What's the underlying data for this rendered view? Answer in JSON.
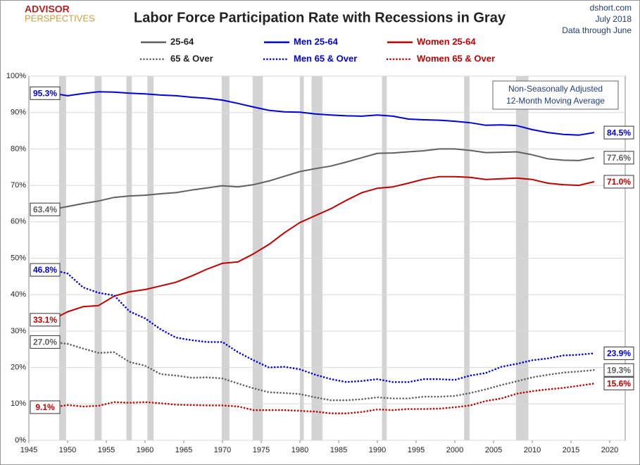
{
  "chart_data": {
    "type": "line",
    "title": "Labor Force Participation Rate with Recessions in Gray",
    "logo": [
      "ADVISOR",
      "PERSPECTIVES"
    ],
    "source": [
      "dshort.com",
      "July 2018",
      "Data through June"
    ],
    "note": [
      "Non-Seasonally Adjusted",
      "12-Month Moving Average"
    ],
    "x": [
      1948,
      1950,
      1952,
      1954,
      1956,
      1958,
      1960,
      1962,
      1964,
      1966,
      1968,
      1970,
      1972,
      1974,
      1976,
      1978,
      1980,
      1982,
      1984,
      1986,
      1988,
      1990,
      1992,
      1994,
      1996,
      1998,
      2000,
      2002,
      2004,
      2006,
      2008,
      2010,
      2012,
      2014,
      2016,
      2018
    ],
    "series": [
      {
        "name": "25-64",
        "color": "#606060",
        "dash": "solid",
        "values": [
          63.4,
          64.2,
          65.0,
          65.7,
          66.7,
          67.1,
          67.3,
          67.7,
          68.0,
          68.7,
          69.3,
          69.9,
          69.6,
          70.2,
          71.2,
          72.5,
          73.8,
          74.6,
          75.3,
          76.4,
          77.6,
          78.8,
          78.9,
          79.2,
          79.5,
          80.0,
          80.0,
          79.6,
          79.0,
          79.1,
          79.2,
          78.4,
          77.3,
          76.9,
          76.8,
          77.6
        ],
        "value_labels": [
          "63.4%",
          null,
          null,
          null,
          null,
          null,
          null,
          null,
          null,
          null,
          null,
          null,
          null,
          null,
          null,
          null,
          null,
          null,
          null,
          null,
          null,
          null,
          null,
          null,
          null,
          null,
          null,
          null,
          null,
          null,
          null,
          null,
          null,
          null,
          null,
          "77.6%"
        ]
      },
      {
        "name": "Men 25-64",
        "color": "#0000dd",
        "dash": "solid",
        "values": [
          95.3,
          94.6,
          95.2,
          95.7,
          95.6,
          95.3,
          95.1,
          94.8,
          94.6,
          94.2,
          93.9,
          93.4,
          92.5,
          91.5,
          90.6,
          90.2,
          90.1,
          89.6,
          89.3,
          89.1,
          89.0,
          89.3,
          89.0,
          88.2,
          88.0,
          87.9,
          87.6,
          87.2,
          86.5,
          86.6,
          86.4,
          85.3,
          84.5,
          84.0,
          83.8,
          84.5
        ],
        "value_labels": [
          "95.3%",
          null,
          null,
          null,
          null,
          null,
          null,
          null,
          null,
          null,
          null,
          null,
          null,
          null,
          null,
          null,
          null,
          null,
          null,
          null,
          null,
          null,
          null,
          null,
          null,
          null,
          null,
          null,
          null,
          null,
          null,
          null,
          null,
          null,
          null,
          "84.5%"
        ]
      },
      {
        "name": "Women 25-64",
        "color": "#c00000",
        "dash": "solid",
        "values": [
          33.1,
          35.3,
          36.7,
          37.0,
          39.6,
          40.8,
          41.4,
          42.4,
          43.4,
          45.1,
          47.0,
          48.6,
          49.0,
          51.2,
          53.8,
          57.0,
          59.8,
          61.7,
          63.6,
          65.9,
          68.0,
          69.2,
          69.6,
          70.6,
          71.7,
          72.4,
          72.4,
          72.2,
          71.6,
          71.8,
          72.0,
          71.6,
          70.6,
          70.2,
          70.0,
          71.0
        ],
        "value_labels": [
          "33.1%",
          null,
          null,
          null,
          null,
          null,
          null,
          null,
          null,
          null,
          null,
          null,
          null,
          null,
          null,
          null,
          null,
          null,
          null,
          null,
          null,
          null,
          null,
          null,
          null,
          null,
          null,
          null,
          null,
          null,
          null,
          null,
          null,
          null,
          null,
          "71.0%"
        ]
      },
      {
        "name": "65 & Over",
        "color": "#606060",
        "dash": "dotted",
        "values": [
          27.0,
          26.5,
          25.2,
          24.0,
          24.2,
          21.5,
          20.5,
          18.2,
          17.8,
          17.2,
          17.3,
          17.0,
          15.6,
          14.3,
          13.2,
          13.0,
          12.7,
          11.8,
          11.0,
          11.0,
          11.3,
          11.8,
          11.5,
          11.5,
          12.0,
          12.0,
          12.2,
          13.0,
          14.0,
          15.2,
          16.2,
          17.3,
          18.0,
          18.6,
          18.9,
          19.3
        ],
        "value_labels": [
          "27.0%",
          null,
          null,
          null,
          null,
          null,
          null,
          null,
          null,
          null,
          null,
          null,
          null,
          null,
          null,
          null,
          null,
          null,
          null,
          null,
          null,
          null,
          null,
          null,
          null,
          null,
          null,
          null,
          null,
          null,
          null,
          null,
          null,
          null,
          null,
          "19.3%"
        ]
      },
      {
        "name": "Men 65 & Over",
        "color": "#0000dd",
        "dash": "dotted",
        "values": [
          46.8,
          45.8,
          42.0,
          40.5,
          39.8,
          35.4,
          33.5,
          30.5,
          28.2,
          27.5,
          27.0,
          27.0,
          24.2,
          22.0,
          20.0,
          20.2,
          19.5,
          18.0,
          16.8,
          16.0,
          16.3,
          16.8,
          16.0,
          16.0,
          16.8,
          16.8,
          16.6,
          17.8,
          18.5,
          20.2,
          21.0,
          22.0,
          22.5,
          23.3,
          23.5,
          23.9
        ],
        "value_labels": [
          "46.8%",
          null,
          null,
          null,
          null,
          null,
          null,
          null,
          null,
          null,
          null,
          null,
          null,
          null,
          null,
          null,
          null,
          null,
          null,
          null,
          null,
          null,
          null,
          null,
          null,
          null,
          null,
          null,
          null,
          null,
          null,
          null,
          null,
          null,
          null,
          "23.9%"
        ]
      },
      {
        "name": "Women 65 & Over",
        "color": "#c00000",
        "dash": "dotted",
        "values": [
          9.1,
          9.7,
          9.3,
          9.5,
          10.5,
          10.3,
          10.5,
          10.2,
          9.8,
          9.7,
          9.6,
          9.6,
          9.3,
          8.3,
          8.3,
          8.3,
          8.1,
          7.9,
          7.4,
          7.4,
          7.8,
          8.5,
          8.3,
          8.6,
          8.6,
          8.7,
          9.1,
          9.6,
          10.8,
          11.5,
          12.8,
          13.5,
          14.0,
          14.4,
          15.0,
          15.6
        ],
        "value_labels": [
          "9.1%",
          null,
          null,
          null,
          null,
          null,
          null,
          null,
          null,
          null,
          null,
          null,
          null,
          null,
          null,
          null,
          null,
          null,
          null,
          null,
          null,
          null,
          null,
          null,
          null,
          null,
          null,
          null,
          null,
          null,
          null,
          null,
          null,
          null,
          null,
          "15.6%"
        ]
      }
    ],
    "recessions": [
      [
        1948.9,
        1949.8
      ],
      [
        1953.5,
        1954.4
      ],
      [
        1957.6,
        1958.3
      ],
      [
        1960.3,
        1961.1
      ],
      [
        1969.9,
        1970.9
      ],
      [
        1973.9,
        1975.2
      ],
      [
        1980.0,
        1980.5
      ],
      [
        1981.5,
        1982.9
      ],
      [
        1990.6,
        1991.2
      ],
      [
        2001.2,
        2001.9
      ],
      [
        2007.9,
        2009.5
      ]
    ],
    "recession_color": "#d3d3d3",
    "xlim": [
      1945,
      2022
    ],
    "xticks": [
      1945,
      1950,
      1955,
      1960,
      1965,
      1970,
      1975,
      1980,
      1985,
      1990,
      1995,
      2000,
      2005,
      2010,
      2015,
      2020
    ],
    "ylim": [
      0,
      100
    ],
    "yticks": [
      {
        "value": 0,
        "label": "0%"
      },
      {
        "value": 10,
        "label": "10%"
      },
      {
        "value": 20,
        "label": "20%"
      },
      {
        "value": 30,
        "label": "30%"
      },
      {
        "value": 40,
        "label": "40%"
      },
      {
        "value": 50,
        "label": "50%"
      },
      {
        "value": 60,
        "label": "60%"
      },
      {
        "value": 70,
        "label": "70%"
      },
      {
        "value": 80,
        "label": "80%"
      },
      {
        "value": 90,
        "label": "90%"
      },
      {
        "value": 100,
        "label": "100%"
      }
    ],
    "grid": true
  }
}
